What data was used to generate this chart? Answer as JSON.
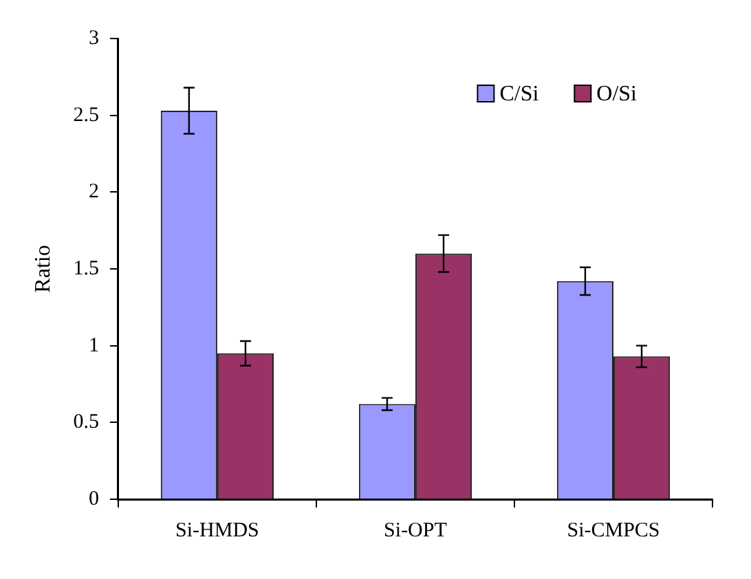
{
  "chart_data": {
    "type": "bar",
    "ylabel": "Ratio",
    "categories": [
      "Si-HMDS",
      "Si-OPT",
      "Si-CMPCS"
    ],
    "series": [
      {
        "name": "C/Si",
        "color": "#9999ff",
        "values": [
          2.53,
          0.62,
          1.42
        ],
        "errors": [
          0.15,
          0.04,
          0.09
        ]
      },
      {
        "name": "O/Si",
        "color": "#993366",
        "values": [
          0.95,
          1.6,
          0.93
        ],
        "errors": [
          0.08,
          0.12,
          0.07
        ]
      }
    ],
    "ylim": [
      0,
      3
    ],
    "yticks": [
      0,
      0.5,
      1,
      1.5,
      2,
      2.5,
      3
    ],
    "grid": false,
    "legend": "top right"
  }
}
